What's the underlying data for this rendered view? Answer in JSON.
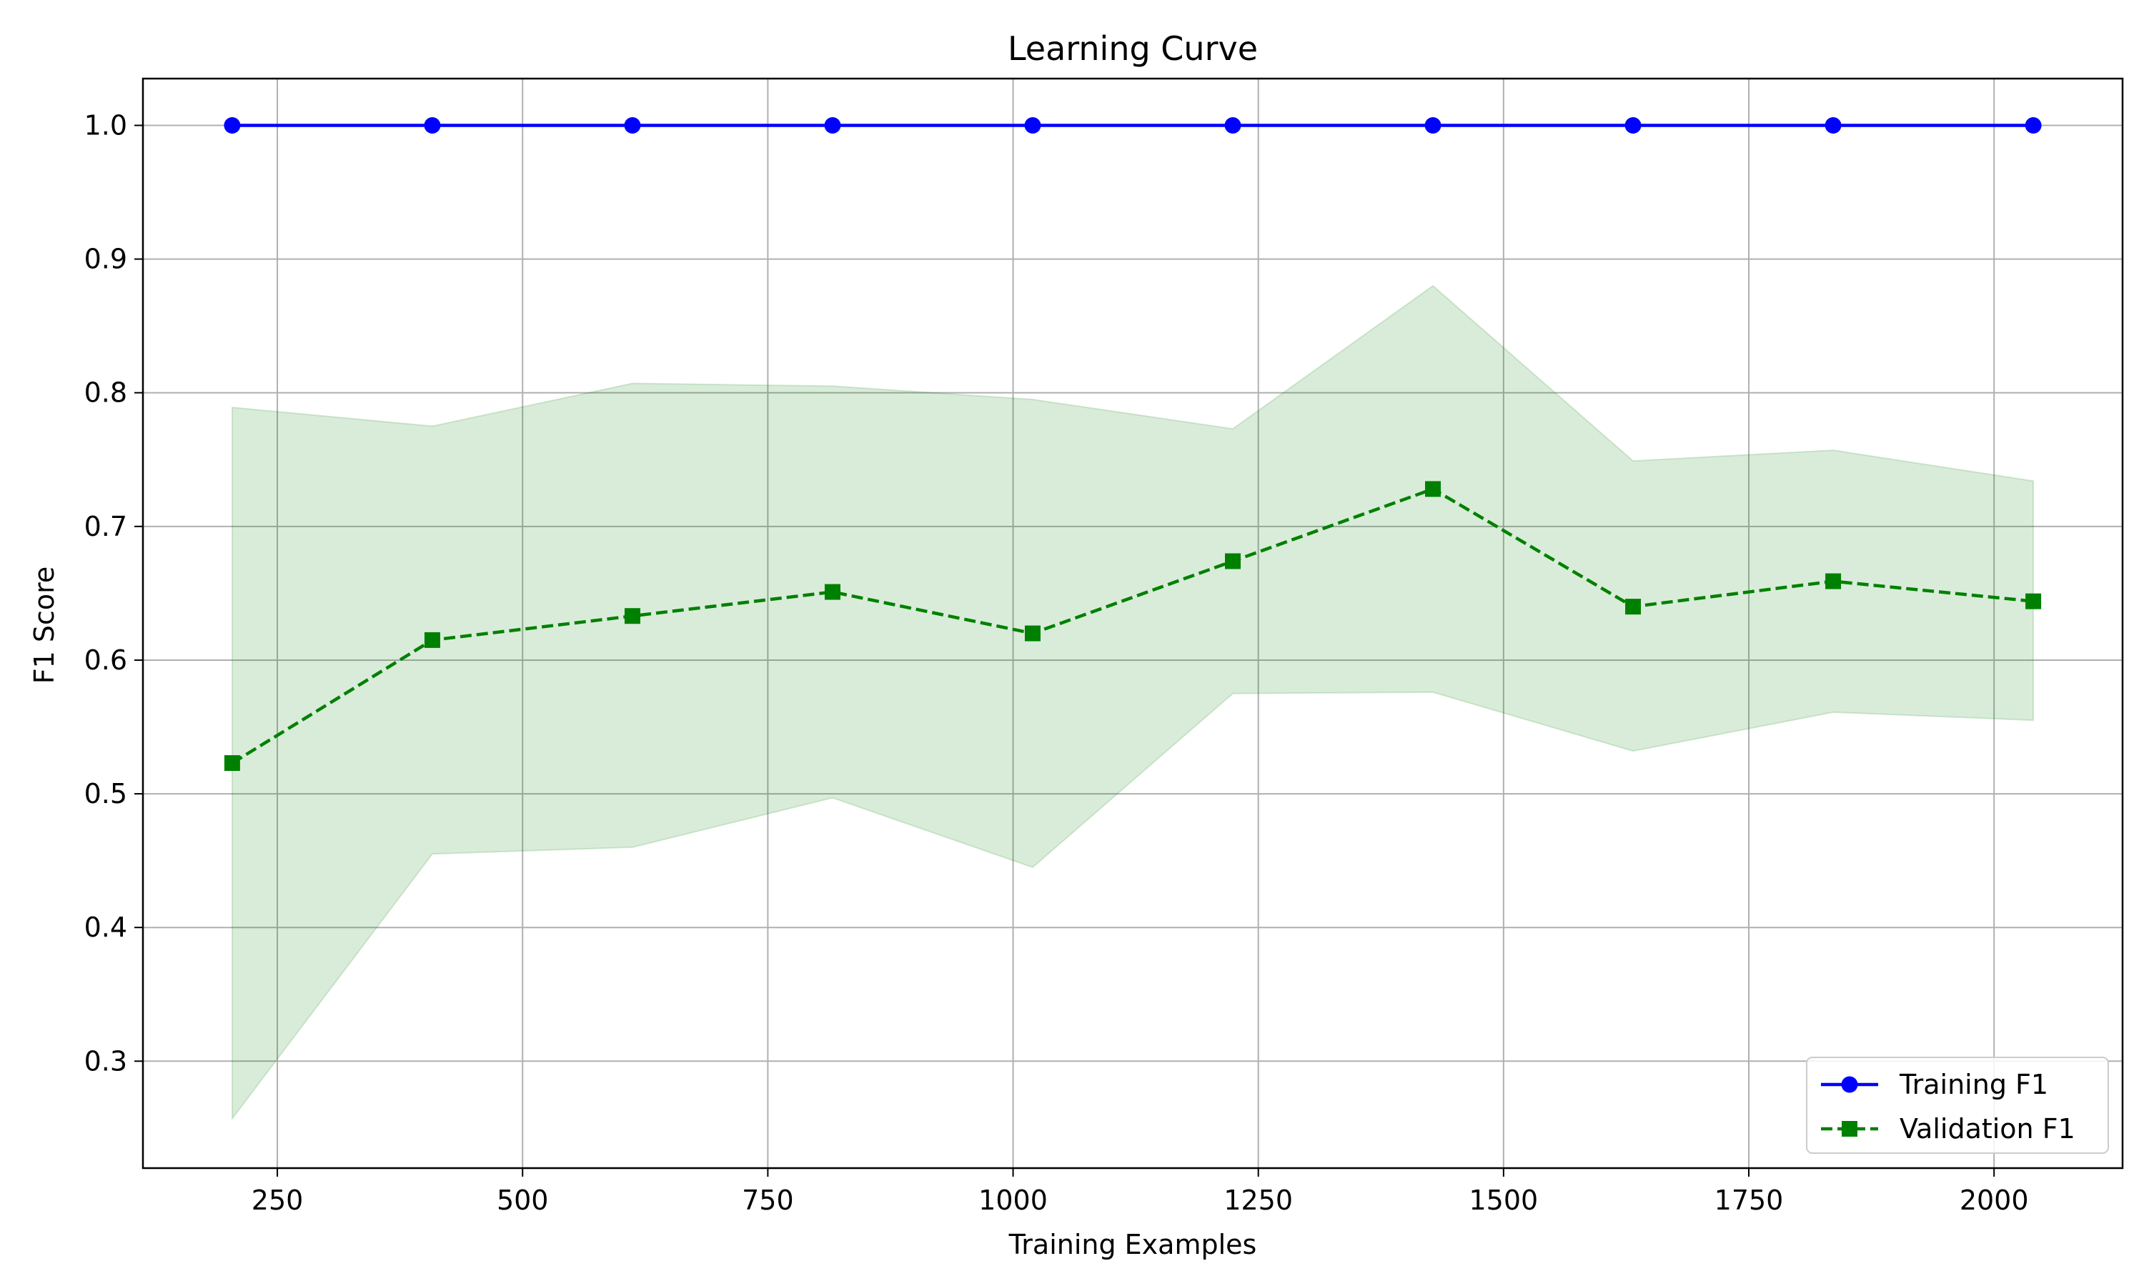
{
  "chart_data": {
    "type": "line",
    "title": "Learning Curve",
    "xlabel": "Training Examples",
    "ylabel": "F1 Score",
    "x": [
      204,
      408,
      612,
      816,
      1020,
      1224,
      1428,
      1632,
      1836,
      2040
    ],
    "xlim": [
      113,
      2131
    ],
    "ylim": [
      0.22,
      1.035
    ],
    "xticks": [
      250,
      500,
      750,
      1000,
      1250,
      1500,
      1750,
      2000
    ],
    "xtick_labels": [
      "250",
      "500",
      "750",
      "1000",
      "1250",
      "1500",
      "1750",
      "2000"
    ],
    "yticks": [
      0.3,
      0.4,
      0.5,
      0.6,
      0.7,
      0.8,
      0.9,
      1.0
    ],
    "ytick_labels": [
      "0.3",
      "0.4",
      "0.5",
      "0.6",
      "0.7",
      "0.8",
      "0.9",
      "1.0"
    ],
    "grid": true,
    "legend_position": "bottom-right",
    "series": [
      {
        "name": "Training F1",
        "values": [
          1.0,
          1.0,
          1.0,
          1.0,
          1.0,
          1.0,
          1.0,
          1.0,
          1.0,
          1.0
        ],
        "color": "#0000ff",
        "line_style": "solid",
        "marker": "circle"
      },
      {
        "name": "Validation F1",
        "values": [
          0.523,
          0.615,
          0.633,
          0.651,
          0.62,
          0.674,
          0.728,
          0.64,
          0.659,
          0.644
        ],
        "color": "#008000",
        "line_style": "dashed",
        "marker": "square",
        "band_upper": [
          0.789,
          0.775,
          0.807,
          0.805,
          0.795,
          0.773,
          0.88,
          0.749,
          0.757,
          0.734
        ],
        "band_lower": [
          0.257,
          0.455,
          0.46,
          0.497,
          0.445,
          0.575,
          0.576,
          0.532,
          0.561,
          0.555
        ],
        "band_color": "#008000"
      }
    ]
  }
}
